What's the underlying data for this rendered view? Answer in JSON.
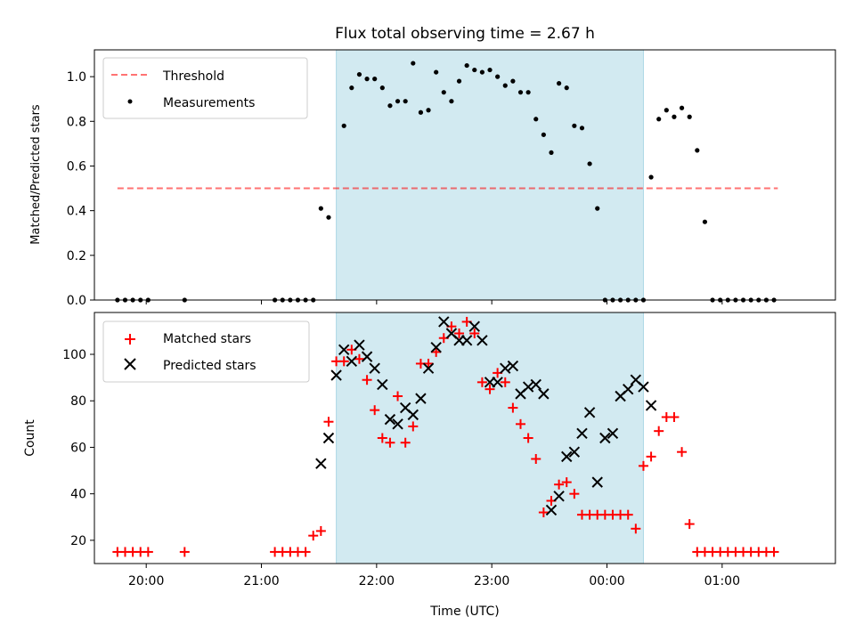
{
  "chart_data": [
    {
      "type": "scatter",
      "title": "Flux total observing time = 2.67 h",
      "xlabel": "",
      "ylabel": "Matched/Predicted stars",
      "xlim": [
        "19:33",
        "01:59"
      ],
      "ylim": [
        0,
        1.12
      ],
      "yticks": [
        "0.0",
        "0.2",
        "0.4",
        "0.6",
        "0.8",
        "1.0"
      ],
      "legend_position": "upper-left",
      "highlight": {
        "start": "21:39",
        "end": "00:19",
        "color": "#add8e6"
      },
      "threshold": {
        "name": "Threshold",
        "value": 0.5,
        "x_start": "19:45",
        "x_end": "01:29",
        "color": "#ff0000"
      },
      "series": [
        {
          "name": "Measurements",
          "color": "#000000",
          "x": [
            "19:45",
            "19:49",
            "19:53",
            "19:57",
            "20:01",
            "20:20",
            "21:07",
            "21:11",
            "21:15",
            "21:19",
            "21:23",
            "21:27",
            "21:31",
            "21:35",
            "21:43",
            "21:47",
            "21:51",
            "21:55",
            "21:59",
            "22:03",
            "22:07",
            "22:11",
            "22:15",
            "22:19",
            "22:23",
            "22:27",
            "22:31",
            "22:35",
            "22:39",
            "22:43",
            "22:47",
            "22:51",
            "22:55",
            "22:59",
            "23:03",
            "23:07",
            "23:11",
            "23:15",
            "23:19",
            "23:23",
            "23:27",
            "23:31",
            "23:35",
            "23:39",
            "23:43",
            "23:47",
            "23:51",
            "23:55",
            "23:59",
            "00:03",
            "00:07",
            "00:11",
            "00:15",
            "00:19",
            "00:23",
            "00:27",
            "00:31",
            "00:35",
            "00:39",
            "00:43",
            "00:47",
            "00:51",
            "00:55",
            "00:59",
            "01:03",
            "01:07",
            "01:11",
            "01:15",
            "01:19",
            "01:23",
            "01:27"
          ],
          "values": [
            0,
            0,
            0,
            0,
            0,
            0,
            0,
            0,
            0,
            0,
            0,
            0,
            0.41,
            0.37,
            0.78,
            0.95,
            1.01,
            0.99,
            0.99,
            0.95,
            0.87,
            0.89,
            0.89,
            1.06,
            0.84,
            0.85,
            1.02,
            0.93,
            0.89,
            0.98,
            1.05,
            1.03,
            1.02,
            1.03,
            1.0,
            0.96,
            0.98,
            0.93,
            0.93,
            0.81,
            0.74,
            0.66,
            0.97,
            0.95,
            0.78,
            0.77,
            0.61,
            0.41,
            0,
            0,
            0,
            0,
            0,
            0,
            0.55,
            0.81,
            0.85,
            0.82,
            0.86,
            0.82,
            0.67,
            0.35,
            0,
            0,
            0,
            0,
            0,
            0,
            0,
            0,
            0
          ]
        }
      ]
    },
    {
      "type": "scatter",
      "title": "",
      "xlabel": "Time (UTC)",
      "ylabel": "Count",
      "xlim": [
        "19:33",
        "01:59"
      ],
      "ylim": [
        10,
        118
      ],
      "xticks": [
        "20:00",
        "21:00",
        "22:00",
        "23:00",
        "00:00",
        "01:00"
      ],
      "yticks": [
        "20",
        "40",
        "60",
        "80",
        "100"
      ],
      "legend_position": "upper-left",
      "highlight": {
        "start": "21:39",
        "end": "00:19",
        "color": "#add8e6"
      },
      "series": [
        {
          "name": "Matched stars",
          "marker": "+",
          "color": "#ff0000",
          "x": [
            "19:45",
            "19:49",
            "19:53",
            "19:57",
            "20:01",
            "20:20",
            "21:07",
            "21:11",
            "21:15",
            "21:19",
            "21:23",
            "21:27",
            "21:31",
            "21:35",
            "21:39",
            "21:43",
            "21:47",
            "21:51",
            "21:55",
            "21:59",
            "22:03",
            "22:07",
            "22:11",
            "22:15",
            "22:19",
            "22:23",
            "22:27",
            "22:31",
            "22:35",
            "22:39",
            "22:43",
            "22:47",
            "22:51",
            "22:55",
            "22:59",
            "23:03",
            "23:07",
            "23:11",
            "23:15",
            "23:19",
            "23:23",
            "23:27",
            "23:31",
            "23:35",
            "23:39",
            "23:43",
            "23:47",
            "23:51",
            "23:55",
            "23:59",
            "00:03",
            "00:07",
            "00:11",
            "00:15",
            "00:19",
            "00:23",
            "00:27",
            "00:31",
            "00:35",
            "00:39",
            "00:43",
            "00:47",
            "00:51",
            "00:55",
            "00:59",
            "01:03",
            "01:07",
            "01:11",
            "01:15",
            "01:19",
            "01:23",
            "01:27"
          ],
          "values": [
            15,
            15,
            15,
            15,
            15,
            15,
            15,
            15,
            15,
            15,
            15,
            22,
            24,
            71,
            97,
            97,
            102,
            98,
            89,
            76,
            64,
            62,
            82,
            62,
            69,
            96,
            96,
            101,
            107,
            112,
            109,
            114,
            109,
            88,
            85,
            92,
            88,
            77,
            70,
            64,
            55,
            32,
            37,
            44,
            45,
            40,
            31,
            31,
            31,
            31,
            31,
            31,
            31,
            25,
            52,
            56,
            67,
            73,
            73,
            58,
            27,
            15,
            15,
            15,
            15,
            15,
            15,
            15,
            15,
            15,
            15,
            15
          ]
        },
        {
          "name": "Predicted stars",
          "marker": "x",
          "color": "#000000",
          "x": [
            "21:31",
            "21:35",
            "21:39",
            "21:43",
            "21:47",
            "21:51",
            "21:55",
            "21:59",
            "22:03",
            "22:07",
            "22:11",
            "22:15",
            "22:19",
            "22:23",
            "22:27",
            "22:31",
            "22:35",
            "22:39",
            "22:43",
            "22:47",
            "22:51",
            "22:55",
            "22:59",
            "23:03",
            "23:07",
            "23:11",
            "23:15",
            "23:19",
            "23:23",
            "23:27",
            "23:31",
            "23:35",
            "23:39",
            "23:43",
            "23:47",
            "23:51",
            "23:55",
            "23:59",
            "00:03",
            "00:07",
            "00:11",
            "00:15",
            "00:19",
            "00:23",
            "00:27",
            "00:31",
            "00:35",
            "00:39",
            "00:43",
            "00:47",
            "00:51",
            "00:55",
            "00:59",
            "01:03",
            "01:07",
            "01:11",
            "01:15",
            "01:19",
            "01:23",
            "01:27"
          ],
          "values": [
            53,
            64,
            91,
            102,
            97,
            104,
            99,
            94,
            87,
            72,
            70,
            77,
            74,
            81,
            94,
            103,
            114,
            109,
            106,
            106,
            112,
            106,
            88,
            88,
            94,
            95,
            83,
            86,
            87,
            83,
            33,
            39,
            56,
            58,
            66,
            75,
            45,
            64,
            66,
            82,
            85,
            89,
            86,
            78,
            null,
            null,
            null,
            null,
            null,
            null,
            null,
            null,
            null,
            null,
            null,
            null,
            null,
            null,
            null,
            null
          ]
        }
      ]
    }
  ]
}
